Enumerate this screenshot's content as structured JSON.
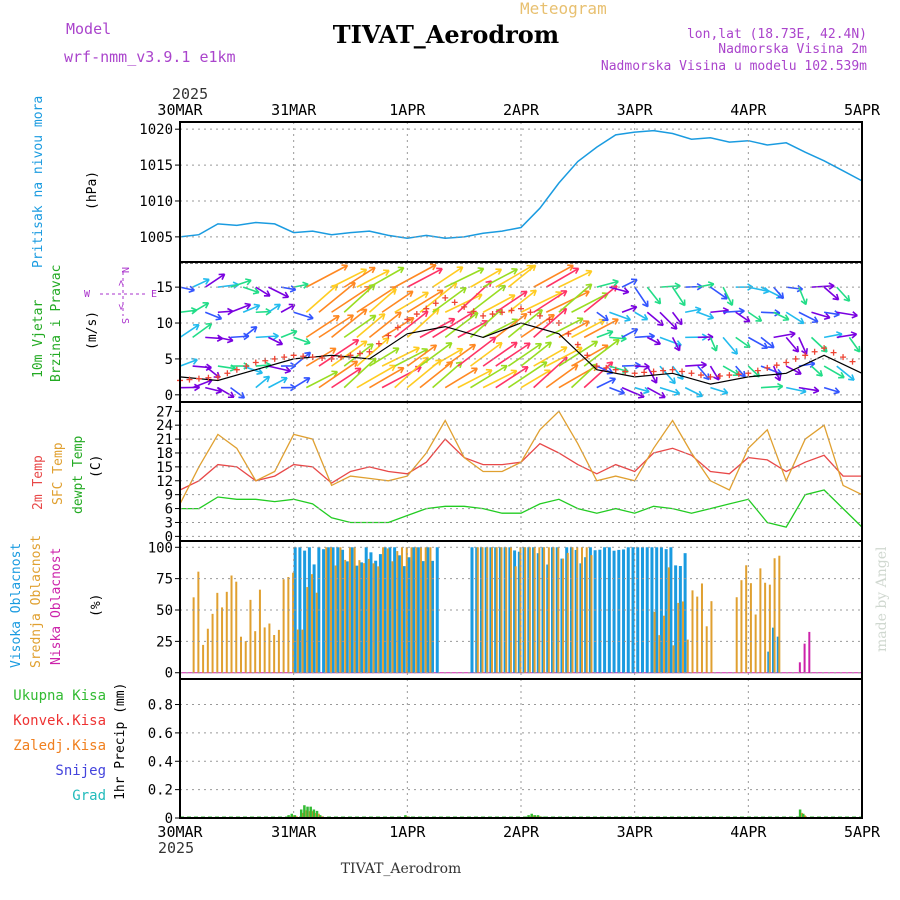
{
  "header": {
    "model_label": "Model",
    "model_name": "wrf-nmm_v3.9.1 e1km",
    "title": "TIVAT_Aerodrom",
    "meteogram_label": "Meteogram",
    "lonlat": "lon,lat (18.73E, 42.4N)",
    "height_station": "Nadmorska Visina 2m",
    "height_model": "Nadmorska Visina u modelu 102.539m",
    "footer_title": "TIVAT_Aerodrom",
    "watermark": "made by Angel"
  },
  "colors": {
    "pressure": "#1a9be0",
    "wind_speed": "#000000",
    "gust": "#ee4433",
    "temp2m": "#e84848",
    "sfc_temp": "#e0a030",
    "dewpoint": "#22cc22",
    "cloud_high": "#1a9be0",
    "cloud_mid": "#e0a030",
    "cloud_low": "#cc22aa",
    "precip_total": "#33bb33",
    "precip_conv": "#ee3333",
    "precip_frozen": "#f08020",
    "snow": "#4444dd",
    "graupel": "#22bbbb",
    "wind_rose_label": "#aa33cc"
  },
  "chart_data": [
    {
      "type": "line",
      "panel": "pressure",
      "ylabel_colored": "Pritisak na nivou mora",
      "ylabel_unit": "(hPa)",
      "ylim": [
        1001.5,
        1021
      ],
      "yticks": [
        1005,
        1010,
        1015,
        1020
      ],
      "x_hours": [
        0,
        6,
        12,
        18,
        24,
        30,
        36,
        42,
        48,
        54,
        60,
        66,
        72,
        78,
        84,
        90,
        96,
        102,
        108,
        114,
        120,
        126,
        132,
        138,
        144
      ],
      "series": [
        {
          "values": [
            1005.0,
            1005.3,
            1006.8,
            1006.6,
            1007.0,
            1006.8,
            1005.6,
            1005.8,
            1005.3,
            1005.6,
            1005.8,
            1005.2,
            1004.8,
            1005.2,
            1004.8,
            1005.0,
            1005.5,
            1005.8,
            1006.3,
            1009.0,
            1012.5,
            1015.5,
            1017.5,
            1019.2,
            1019.6
          ]
        }
      ],
      "series_tail": {
        "x_hours": [
          150,
          156,
          162,
          168,
          174,
          180,
          186,
          192,
          198,
          204,
          210,
          216
        ],
        "values": [
          1019.8,
          1019.4,
          1018.6,
          1018.8,
          1018.2,
          1018.4,
          1017.8,
          1018.1,
          1016.8,
          1015.6,
          1014.2,
          1012.8
        ]
      }
    },
    {
      "type": "line",
      "panel": "wind",
      "ylabel_colored": "10m Vjetar Brzina i Pravac",
      "ylabel_unit": "(m/s)",
      "ylim": [
        -1,
        18.5
      ],
      "yticks": [
        0,
        5,
        10,
        15
      ],
      "wind_rose": {
        "n": "N",
        "s": "S",
        "w": "W",
        "e": "E"
      },
      "x_hours": [
        0,
        12,
        24,
        36,
        48,
        60,
        72,
        84,
        96,
        108,
        120,
        132,
        144,
        156,
        168,
        180,
        192,
        204,
        216
      ],
      "series": [
        {
          "name": "",
          "values": [
            2.5,
            2.0,
            3.5,
            5.0,
            5.5,
            5.0,
            8.5,
            9.5,
            8.0,
            10.0,
            8.5,
            3.5,
            2.5,
            3.0,
            1.5,
            2.5,
            3.0,
            5.5,
            3.0
          ]
        },
        {
          "name": "",
          "values": [
            2.0,
            2.5,
            4.5,
            5.5,
            5.0,
            6.0,
            10.5,
            13.5,
            11.0,
            12.0,
            10.0,
            4.0,
            3.0,
            3.5,
            2.5,
            3.0,
            4.5,
            6.5,
            4.0
          ]
        }
      ]
    },
    {
      "type": "line",
      "panel": "temperature",
      "ylabel_colored_1": "2m Temp",
      "ylabel_colored_2": "SFC Temp",
      "ylabel_colored_3": "dewpt Temp",
      "ylabel_unit": "(C)",
      "ylim": [
        -1,
        29
      ],
      "yticks": [
        0,
        3,
        6,
        9,
        12,
        15,
        18,
        21,
        24,
        27
      ],
      "x_hours": [
        0,
        6,
        12,
        18,
        24,
        30,
        36,
        42,
        48,
        54,
        60,
        66,
        72,
        78,
        84,
        90,
        96,
        102,
        108,
        114,
        120,
        126,
        132,
        138,
        144,
        150,
        156,
        162,
        168,
        174,
        180,
        186,
        192,
        198,
        204,
        210,
        216
      ],
      "series": [
        {
          "name": "2m Temp",
          "values": [
            10,
            12,
            15.5,
            15,
            12,
            13,
            15.5,
            15,
            11.5,
            14,
            15,
            14,
            13.5,
            16,
            21,
            17,
            15.5,
            15.5,
            16,
            20,
            18,
            15.5,
            13.5,
            15.5,
            14,
            18,
            19,
            17.5,
            14,
            13.5,
            17,
            16.5,
            14,
            16,
            17.5,
            13,
            13
          ]
        },
        {
          "name": "SFC Temp",
          "values": [
            7,
            15,
            22,
            19,
            12,
            14,
            22,
            21,
            11,
            13,
            12.5,
            12,
            13,
            18,
            25,
            17,
            14,
            14,
            16,
            23,
            27,
            20,
            12,
            13,
            12,
            19,
            25,
            18,
            12,
            10,
            19,
            23,
            12,
            21,
            24,
            11,
            9
          ]
        },
        {
          "name": "dewpt Temp",
          "values": [
            6,
            6,
            8.5,
            8,
            8,
            7.5,
            8,
            7,
            4,
            3,
            3,
            3,
            4.5,
            6,
            6.5,
            6.5,
            6,
            5,
            5,
            7,
            8,
            6,
            5,
            6,
            5,
            6.5,
            6,
            5,
            6,
            7,
            8,
            3,
            2,
            9,
            10,
            6,
            2
          ]
        }
      ]
    },
    {
      "type": "bar",
      "panel": "clouds",
      "ylabel_colored_1": "Visoka Oblacnost",
      "ylabel_colored_2": "Srednja Oblacnost",
      "ylabel_colored_3": "Niska Oblacnost",
      "ylabel_unit": "(%)",
      "ylim": [
        -5,
        105
      ],
      "yticks": [
        0,
        25,
        50,
        75,
        100
      ],
      "series": [
        {
          "name": "Visoka Oblacnost",
          "segments": [
            {
              "from_h": 36,
              "to_h": 82,
              "level": 100
            },
            {
              "from_h": 92,
              "to_h": 160,
              "level": 100
            },
            {
              "from_h": 186,
              "to_h": 190,
              "level": 30
            }
          ]
        },
        {
          "name": "Srednja Oblacnost",
          "segments": [
            {
              "from_h": 4,
              "to_h": 44,
              "level": 60
            },
            {
              "from_h": 46,
              "to_h": 80,
              "level": 90
            },
            {
              "from_h": 94,
              "to_h": 130,
              "level": 90
            },
            {
              "from_h": 150,
              "to_h": 168,
              "level": 60
            },
            {
              "from_h": 176,
              "to_h": 190,
              "level": 70
            }
          ]
        },
        {
          "name": "Niska Oblacnost",
          "segments": [
            {
              "from_h": 196,
              "to_h": 200,
              "level": 25
            }
          ]
        }
      ]
    },
    {
      "type": "bar",
      "panel": "precip",
      "ylabel": "1hr Precip (mm)",
      "legend": [
        "Ukupna Kisa",
        "Konvek.Kisa",
        "Zaledj.Kisa",
        "Snijeg",
        "Grad"
      ],
      "ylim": [
        0,
        0.98
      ],
      "yticks": [
        0,
        0.2,
        0.4,
        0.6,
        0.8
      ],
      "ytick_labels": [
        "0",
        "0.2",
        "0.4",
        "0.6",
        "0.8"
      ],
      "bars_hours": [
        34,
        35,
        36,
        38,
        39,
        40,
        41,
        42,
        43,
        44,
        71,
        72,
        110,
        111,
        112,
        113,
        114,
        115,
        196,
        197
      ],
      "bars_values": [
        0.02,
        0.03,
        0.02,
        0.06,
        0.09,
        0.08,
        0.08,
        0.06,
        0.05,
        0.02,
        0.02,
        0.01,
        0.02,
        0.03,
        0.02,
        0.02,
        0.01,
        0.01,
        0.06,
        0.03
      ]
    }
  ],
  "x_axis": {
    "year": "2025",
    "date_ticks": [
      "30MAR",
      "31MAR",
      "1APR",
      "2APR",
      "3APR",
      "4APR",
      "5APR"
    ],
    "total_hours": 216
  }
}
